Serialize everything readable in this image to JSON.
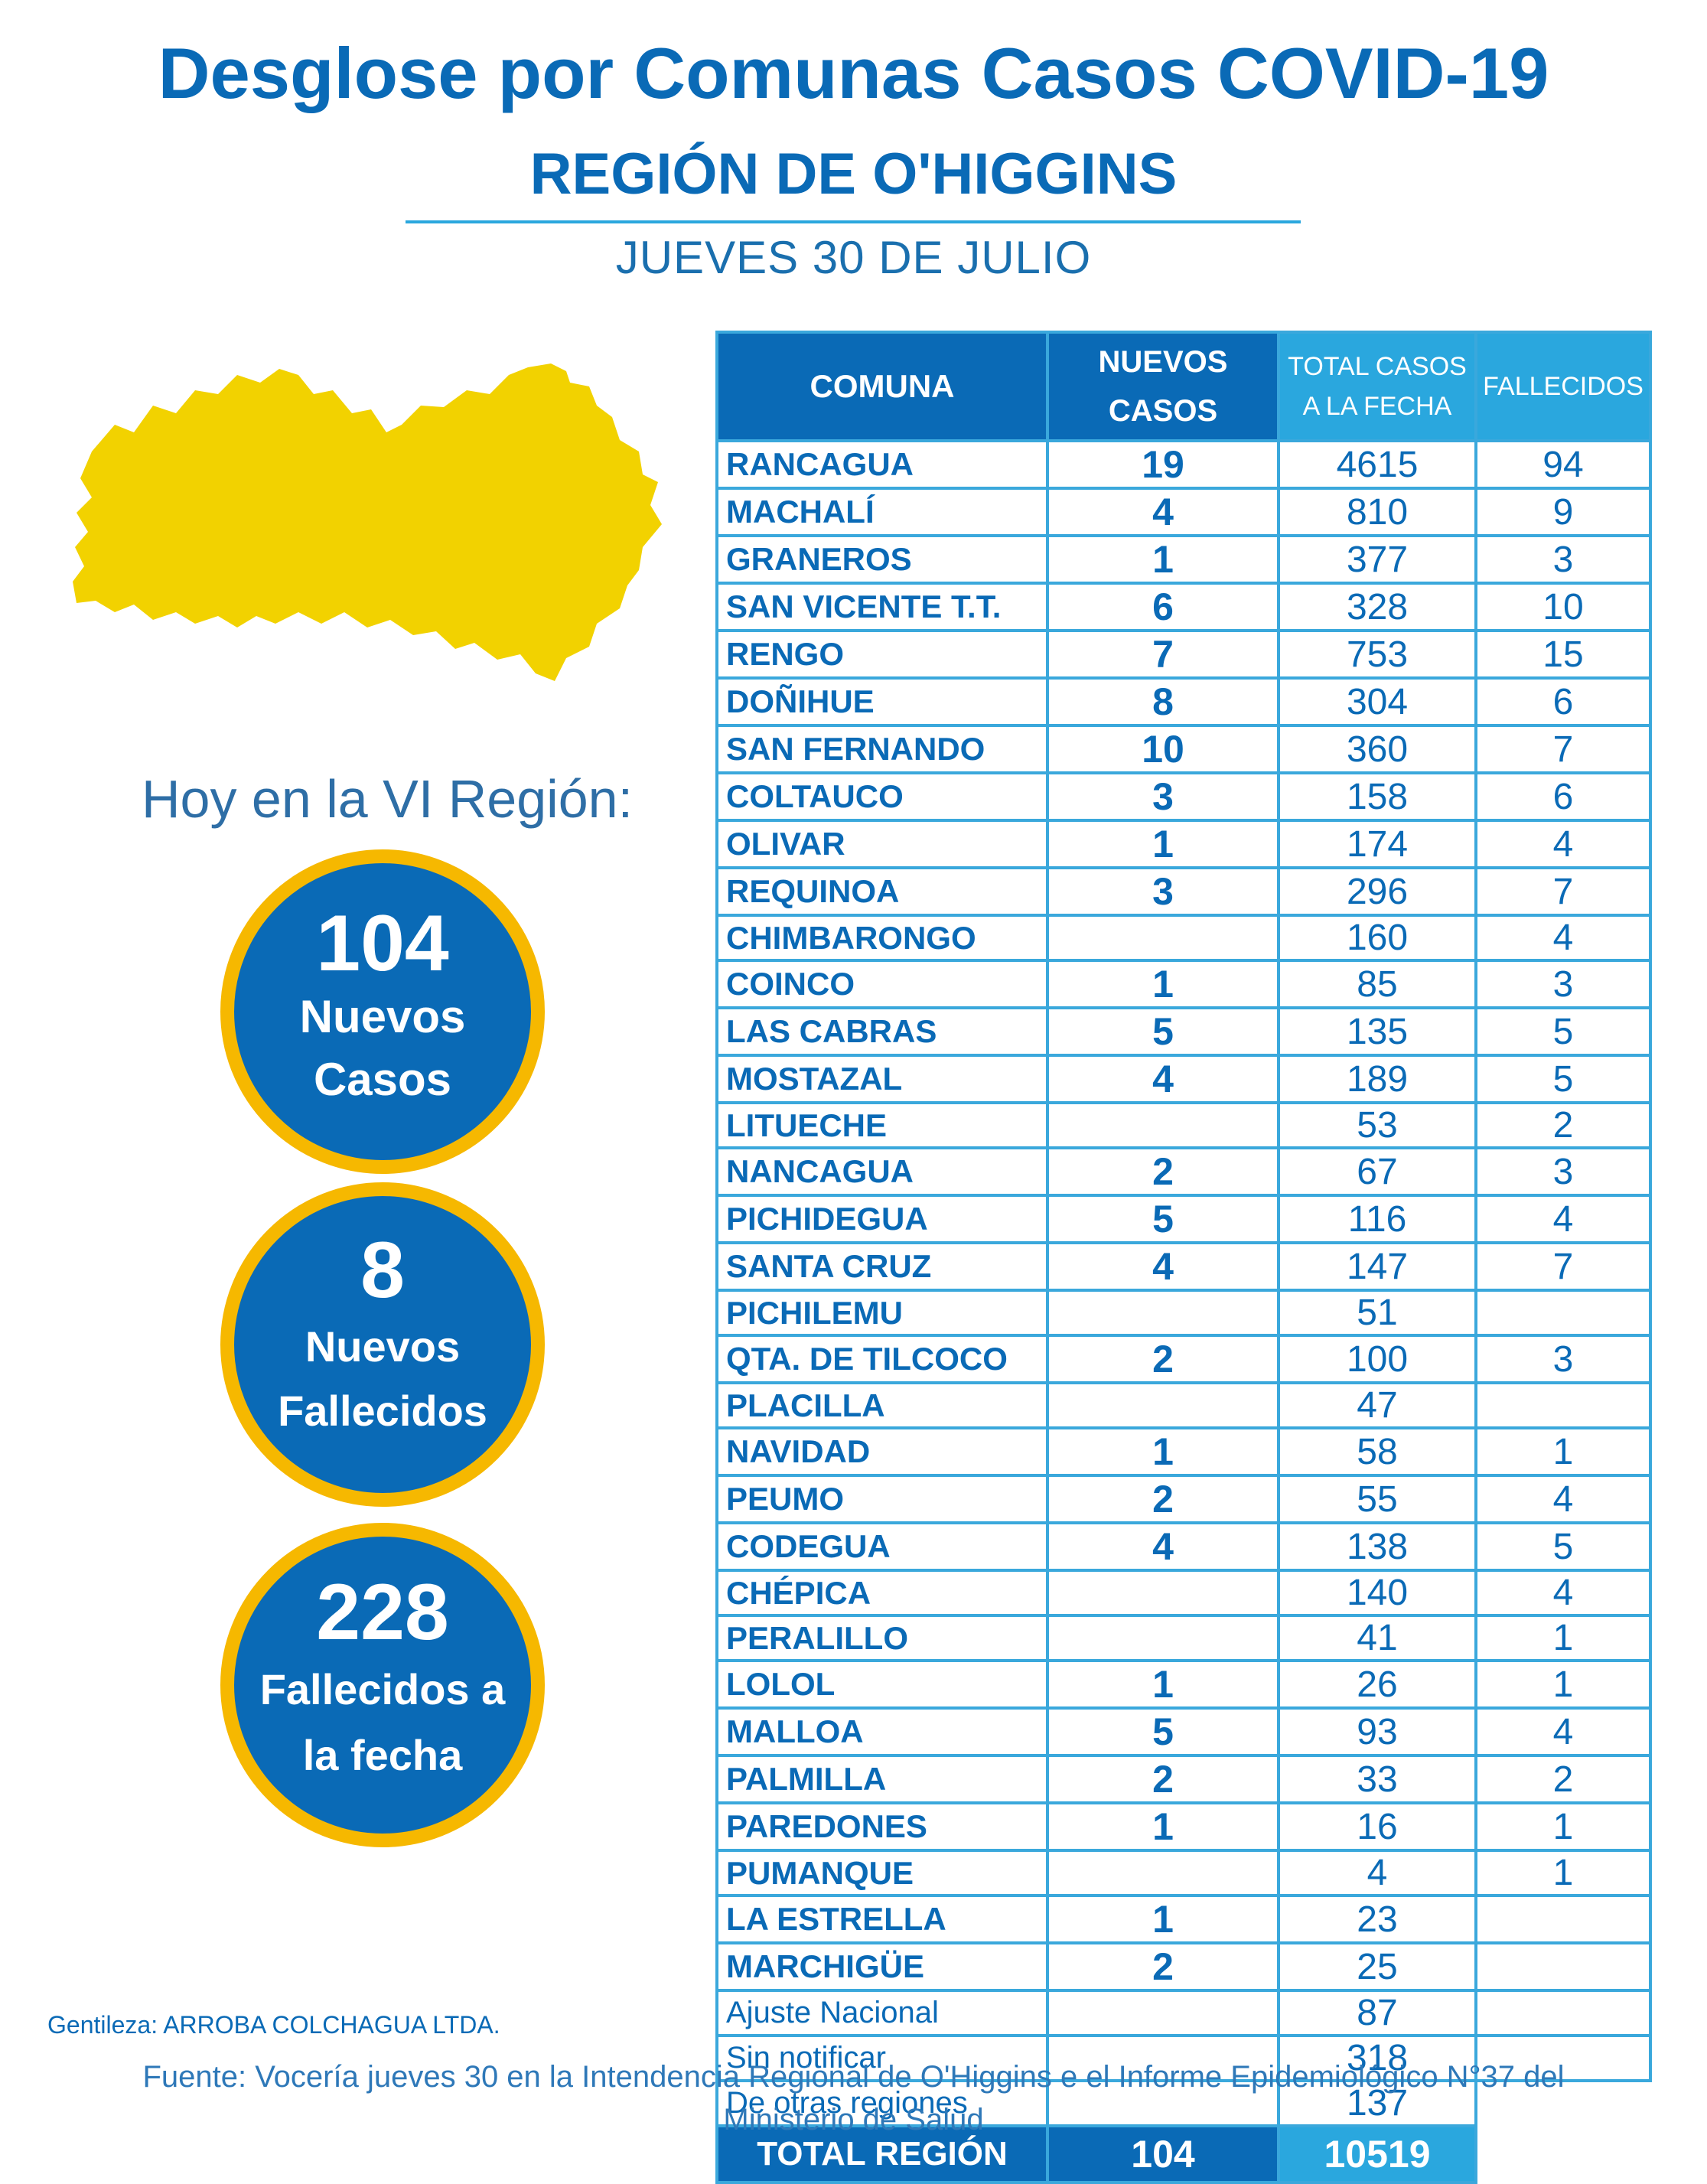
{
  "header": {
    "title": "Desglose por Comunas Casos COVID-19",
    "subtitle": "REGIÓN DE O'HIGGINS",
    "date": "JUEVES 30 DE JULIO"
  },
  "left": {
    "hoy": "Hoy en la VI Región:",
    "circles": [
      {
        "value": "104",
        "line1": "Nuevos",
        "line2": "Casos"
      },
      {
        "value": "8",
        "line1": "Nuevos",
        "line2": "Fallecidos"
      },
      {
        "value": "228",
        "line1": "Fallecidos a",
        "line2": "la fecha"
      }
    ],
    "map_color": "#f2d200"
  },
  "table": {
    "headers": {
      "comuna": "COMUNA",
      "nuevos_1": "NUEVOS",
      "nuevos_2": "CASOS",
      "total_1": "TOTAL CASOS",
      "total_2": "A LA FECHA",
      "fallecidos": "FALLECIDOS"
    },
    "rows": [
      {
        "comuna": "RANCAGUA",
        "nuevos": "19",
        "total": "4615",
        "fallecidos": "94"
      },
      {
        "comuna": "MACHALÍ",
        "nuevos": "4",
        "total": "810",
        "fallecidos": "9"
      },
      {
        "comuna": "GRANEROS",
        "nuevos": "1",
        "total": "377",
        "fallecidos": "3"
      },
      {
        "comuna": "SAN VICENTE T.T.",
        "nuevos": "6",
        "total": "328",
        "fallecidos": "10"
      },
      {
        "comuna": "RENGO",
        "nuevos": "7",
        "total": "753",
        "fallecidos": "15"
      },
      {
        "comuna": "DOÑIHUE",
        "nuevos": "8",
        "total": "304",
        "fallecidos": "6"
      },
      {
        "comuna": "SAN FERNANDO",
        "nuevos": "10",
        "total": "360",
        "fallecidos": "7"
      },
      {
        "comuna": "COLTAUCO",
        "nuevos": "3",
        "total": "158",
        "fallecidos": "6"
      },
      {
        "comuna": "OLIVAR",
        "nuevos": "1",
        "total": "174",
        "fallecidos": "4"
      },
      {
        "comuna": "REQUINOA",
        "nuevos": "3",
        "total": "296",
        "fallecidos": "7"
      },
      {
        "comuna": "CHIMBARONGO",
        "nuevos": "",
        "total": "160",
        "fallecidos": "4"
      },
      {
        "comuna": "COINCO",
        "nuevos": "1",
        "total": "85",
        "fallecidos": "3"
      },
      {
        "comuna": "LAS CABRAS",
        "nuevos": "5",
        "total": "135",
        "fallecidos": "5"
      },
      {
        "comuna": "MOSTAZAL",
        "nuevos": "4",
        "total": "189",
        "fallecidos": "5"
      },
      {
        "comuna": "LITUECHE",
        "nuevos": "",
        "total": "53",
        "fallecidos": "2"
      },
      {
        "comuna": "NANCAGUA",
        "nuevos": "2",
        "total": "67",
        "fallecidos": "3"
      },
      {
        "comuna": "PICHIDEGUA",
        "nuevos": "5",
        "total": "116",
        "fallecidos": "4"
      },
      {
        "comuna": "SANTA CRUZ",
        "nuevos": "4",
        "total": "147",
        "fallecidos": "7"
      },
      {
        "comuna": "PICHILEMU",
        "nuevos": "",
        "total": "51",
        "fallecidos": ""
      },
      {
        "comuna": "QTA. DE TILCOCO",
        "nuevos": "2",
        "total": "100",
        "fallecidos": "3"
      },
      {
        "comuna": "PLACILLA",
        "nuevos": "",
        "total": "47",
        "fallecidos": ""
      },
      {
        "comuna": "NAVIDAD",
        "nuevos": "1",
        "total": "58",
        "fallecidos": "1"
      },
      {
        "comuna": "PEUMO",
        "nuevos": "2",
        "total": "55",
        "fallecidos": "4"
      },
      {
        "comuna": "CODEGUA",
        "nuevos": "4",
        "total": "138",
        "fallecidos": "5"
      },
      {
        "comuna": "CHÉPICA",
        "nuevos": "",
        "total": "140",
        "fallecidos": "4"
      },
      {
        "comuna": "PERALILLO",
        "nuevos": "",
        "total": "41",
        "fallecidos": "1"
      },
      {
        "comuna": "LOLOL",
        "nuevos": "1",
        "total": "26",
        "fallecidos": "1"
      },
      {
        "comuna": "MALLOA",
        "nuevos": "5",
        "total": "93",
        "fallecidos": "4"
      },
      {
        "comuna": "PALMILLA",
        "nuevos": "2",
        "total": "33",
        "fallecidos": "2"
      },
      {
        "comuna": "PAREDONES",
        "nuevos": "1",
        "total": "16",
        "fallecidos": "1"
      },
      {
        "comuna": "PUMANQUE",
        "nuevos": "",
        "total": "4",
        "fallecidos": "1"
      },
      {
        "comuna": "LA ESTRELLA",
        "nuevos": "1",
        "total": "23",
        "fallecidos": ""
      },
      {
        "comuna": "MARCHIGÜE",
        "nuevos": "2",
        "total": "25",
        "fallecidos": ""
      }
    ],
    "extra_rows": [
      {
        "comuna": "Ajuste Nacional",
        "nuevos": "",
        "total": "87",
        "fallecidos": ""
      },
      {
        "comuna": "Sin notificar",
        "nuevos": "",
        "total": "318",
        "fallecidos": ""
      },
      {
        "comuna": "De otras regiones",
        "nuevos": "",
        "total": "137"
      }
    ],
    "total": {
      "label": "TOTAL REGIÓN",
      "nuevos": "104",
      "total": "10519"
    }
  },
  "footer": {
    "gentileza": "Gentileza:  ARROBA COLCHAGUA LTDA.",
    "fuente_1": "Fuente:  Vocería jueves 30 en la Intendencia Regional de O'Higgins e el Informe Epidemiológico N°37 del",
    "fuente_2": "Ministerio de Salud"
  },
  "colors": {
    "blue": "#0a6ab6",
    "light_blue": "#2aa7de",
    "yellow_ring": "#f6b800",
    "map": "#f2d200"
  }
}
